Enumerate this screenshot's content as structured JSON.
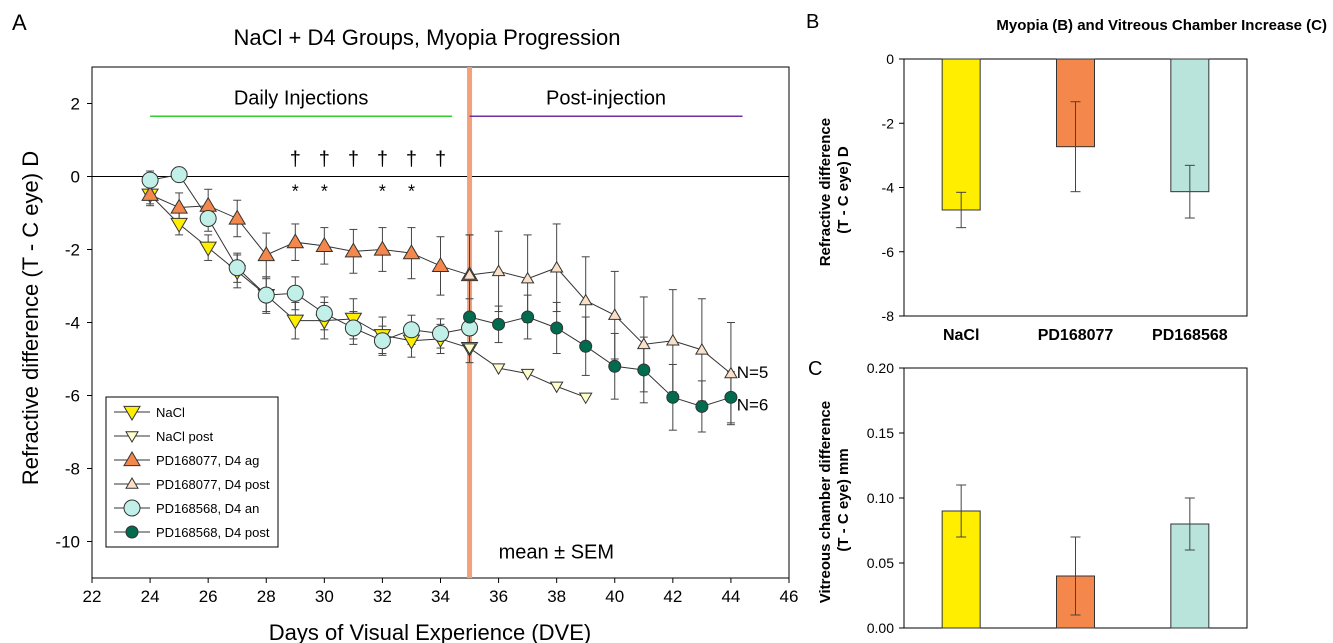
{
  "panels": {
    "a_letter": "A",
    "b_letter": "B",
    "c_letter": "C",
    "bc_title": "Myopia (B) and Vitreous Chamber Increase (C)"
  },
  "chart_data": [
    {
      "id": "A",
      "type": "line",
      "title": "NaCl + D4 Groups, Myopia Progression",
      "xlabel": "Days of Visual Experience (DVE)",
      "ylabel": "Refractive difference (T - C eye) D",
      "xlim": [
        22,
        46
      ],
      "ylim": [
        -11,
        3
      ],
      "xticks": [
        22,
        24,
        26,
        28,
        30,
        32,
        34,
        36,
        38,
        40,
        42,
        44,
        46
      ],
      "yticks": [
        2,
        0,
        -2,
        -4,
        -6,
        -8,
        -10
      ],
      "grid": false,
      "legend_position": "bottom-left",
      "zero_line": 0,
      "injection_end_day": 35,
      "periods": [
        {
          "label": "Daily Injections",
          "x": [
            24,
            34.4
          ],
          "y": 1.65,
          "color": "#33cc33"
        },
        {
          "label": "Post-injection",
          "x": [
            35,
            44.4
          ],
          "y": 1.65,
          "color": "#7030a0"
        }
      ],
      "daggers": {
        "symbol": "†",
        "x": [
          29,
          30,
          31,
          32,
          33,
          34
        ],
        "y": 0.3
      },
      "stars": {
        "symbol": "*",
        "x": [
          29,
          30,
          32,
          33
        ],
        "y": -0.3
      },
      "series": [
        {
          "name": "NaCl",
          "marker": "triangle-down",
          "size": "large",
          "color": "#ffee00",
          "x": [
            24,
            25,
            26,
            27,
            28,
            29,
            30,
            31,
            32,
            33,
            34,
            35
          ],
          "y": [
            -0.5,
            -1.3,
            -1.95,
            -2.6,
            -3.25,
            -3.95,
            -3.95,
            -3.9,
            -4.35,
            -4.5,
            -4.45,
            -4.7
          ],
          "err": [
            0.25,
            0.3,
            0.35,
            0.45,
            0.5,
            0.5,
            0.5,
            0.55,
            0.5,
            0.45,
            0.4,
            0.4
          ]
        },
        {
          "name": "NaCl post",
          "marker": "triangle-down",
          "size": "small",
          "color": "#ffffcc",
          "x": [
            35,
            36,
            37,
            38,
            39
          ],
          "y": [
            -4.7,
            -5.25,
            -5.4,
            -5.75,
            -6.05
          ],
          "err": []
        },
        {
          "name": "PD168077, D4 ag",
          "marker": "triangle-up",
          "size": "large",
          "color": "#f4874b",
          "x": [
            24,
            25,
            26,
            27,
            28,
            29,
            30,
            31,
            32,
            33,
            34,
            35
          ],
          "y": [
            -0.5,
            -0.85,
            -0.8,
            -1.15,
            -2.15,
            -1.8,
            -1.9,
            -2.05,
            -2.0,
            -2.1,
            -2.45,
            -2.7
          ],
          "err": [
            0.3,
            0.4,
            0.45,
            0.5,
            0.6,
            0.5,
            0.5,
            0.6,
            0.6,
            0.7,
            0.8,
            1.1
          ]
        },
        {
          "name": "PD168077, D4 post",
          "marker": "triangle-up",
          "size": "small",
          "color": "#fbe0c8",
          "x": [
            35,
            36,
            37,
            38,
            39,
            40,
            41,
            42,
            43,
            44
          ],
          "y": [
            -2.7,
            -2.6,
            -2.8,
            -2.5,
            -3.4,
            -3.8,
            -4.6,
            -4.5,
            -4.75,
            -5.4
          ],
          "err": [
            1.1,
            1.1,
            1.2,
            1.2,
            1.2,
            1.2,
            1.3,
            1.4,
            1.4,
            1.4
          ]
        },
        {
          "name": "PD168568, D4 an",
          "marker": "circle",
          "size": "large",
          "color": "#c0f0e8",
          "x": [
            24,
            25,
            26,
            27,
            28,
            29,
            30,
            31,
            32,
            33,
            34,
            35
          ],
          "y": [
            -0.1,
            0.05,
            -1.15,
            -2.5,
            -3.25,
            -3.2,
            -3.75,
            -4.15,
            -4.5,
            -4.2,
            -4.3,
            -4.15
          ],
          "err": [
            0.25,
            0.2,
            0.35,
            0.4,
            0.45,
            0.45,
            0.45,
            0.45,
            0.4,
            0.4,
            0.4,
            0.4
          ]
        },
        {
          "name": "PD168568, D4 post",
          "marker": "circle",
          "size": "small",
          "color": "#006b4e",
          "x": [
            35,
            36,
            37,
            38,
            39,
            40,
            41,
            42,
            43,
            44
          ],
          "y": [
            -3.85,
            -4.05,
            -3.85,
            -4.15,
            -4.65,
            -5.2,
            -5.3,
            -6.05,
            -6.3,
            -6.05
          ],
          "err": [
            0.5,
            0.5,
            0.6,
            0.7,
            0.8,
            0.9,
            0.9,
            0.9,
            0.7,
            0.7
          ]
        }
      ],
      "annotations": [
        {
          "text": "N=5",
          "x": 44.2,
          "y": -5.35
        },
        {
          "text": "N=6",
          "x": 44.2,
          "y": -6.25
        },
        {
          "text": "mean ± SEM",
          "x": 36,
          "y": -10.3
        }
      ]
    },
    {
      "id": "B",
      "type": "bar",
      "categories": [
        "NaCl",
        "PD168077",
        "PD168568"
      ],
      "values": [
        -4.7,
        -2.73,
        -4.13
      ],
      "errors": [
        0.55,
        1.4,
        0.82
      ],
      "colors": [
        "#ffee00",
        "#f4874b",
        "#b8e4dc"
      ],
      "xlabel": "",
      "ylabel": "Refractive difference (T - C eye) D",
      "ylim": [
        -8,
        0
      ],
      "yticks": [
        0,
        -2,
        -4,
        -6,
        -8
      ],
      "grid": false
    },
    {
      "id": "C",
      "type": "bar",
      "categories": [
        "NaCl",
        "PD168077",
        "PD168568"
      ],
      "values": [
        0.09,
        0.04,
        0.08
      ],
      "errors": [
        0.02,
        0.03,
        0.02
      ],
      "colors": [
        "#ffee00",
        "#f4874b",
        "#b8e4dc"
      ],
      "xlabel": "",
      "ylabel": "Vitreous chamber difference (T - C eye) mm",
      "ylim": [
        0,
        0.2
      ],
      "yticks": [
        "0.00",
        "0.05",
        "0.10",
        "0.15",
        "0.20"
      ],
      "grid": false
    }
  ]
}
